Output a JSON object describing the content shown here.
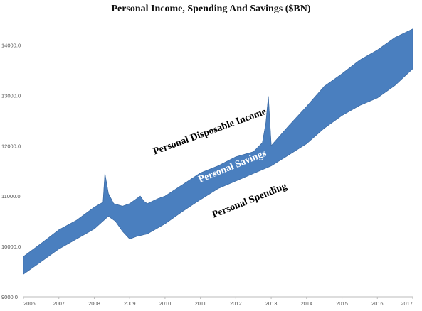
{
  "chart_data": {
    "type": "area",
    "title": "Personal Income, Spending And Savings ($BN)",
    "xlabel": "",
    "ylabel": "",
    "xlim": [
      2006,
      2017
    ],
    "ylim": [
      9000,
      14500
    ],
    "x_ticks": [
      "2006",
      "2007",
      "2008",
      "2009",
      "2010",
      "2011",
      "2012",
      "2013",
      "2014",
      "2015",
      "2016",
      "2017"
    ],
    "y_ticks": [
      "9000.0",
      "10000.0",
      "11000.0",
      "12000.0",
      "13000.0",
      "14000.0"
    ],
    "grid": false,
    "legend": "none",
    "fill_color": "#4a7fbf",
    "series": [
      {
        "name": "Personal Disposable Income",
        "x": [
          2006.0,
          2006.5,
          2007.0,
          2007.5,
          2008.0,
          2008.25,
          2008.3,
          2008.4,
          2008.55,
          2008.8,
          2009.0,
          2009.3,
          2009.4,
          2009.5,
          2009.8,
          2010.0,
          2010.5,
          2011.0,
          2011.5,
          2012.0,
          2012.5,
          2012.75,
          2012.85,
          2012.92,
          2013.0,
          2013.5,
          2014.0,
          2014.5,
          2015.0,
          2015.5,
          2016.0,
          2016.5,
          2017.0
        ],
        "values": [
          9800,
          10060,
          10330,
          10520,
          10780,
          10880,
          11450,
          11050,
          10850,
          10800,
          10850,
          11000,
          10900,
          10850,
          10950,
          11000,
          11230,
          11460,
          11600,
          11780,
          11880,
          12060,
          12450,
          12980,
          12000,
          12400,
          12780,
          13180,
          13430,
          13700,
          13900,
          14150,
          14320
        ]
      },
      {
        "name": "Personal Spending",
        "x": [
          2006.0,
          2006.5,
          2007.0,
          2007.5,
          2008.0,
          2008.4,
          2008.6,
          2008.8,
          2009.0,
          2009.2,
          2009.5,
          2010.0,
          2010.5,
          2011.0,
          2011.5,
          2012.0,
          2012.5,
          2013.0,
          2013.5,
          2014.0,
          2014.5,
          2015.0,
          2015.5,
          2016.0,
          2016.5,
          2017.0
        ],
        "values": [
          9450,
          9700,
          9950,
          10150,
          10350,
          10600,
          10500,
          10300,
          10150,
          10200,
          10250,
          10450,
          10700,
          10930,
          11150,
          11300,
          11450,
          11600,
          11820,
          12040,
          12350,
          12600,
          12800,
          12950,
          13200,
          13530
        ]
      }
    ],
    "annotations": [
      {
        "text": "Personal Disposable Income"
      },
      {
        "text": "Personal Savings"
      },
      {
        "text": "Personal Spending"
      }
    ]
  }
}
